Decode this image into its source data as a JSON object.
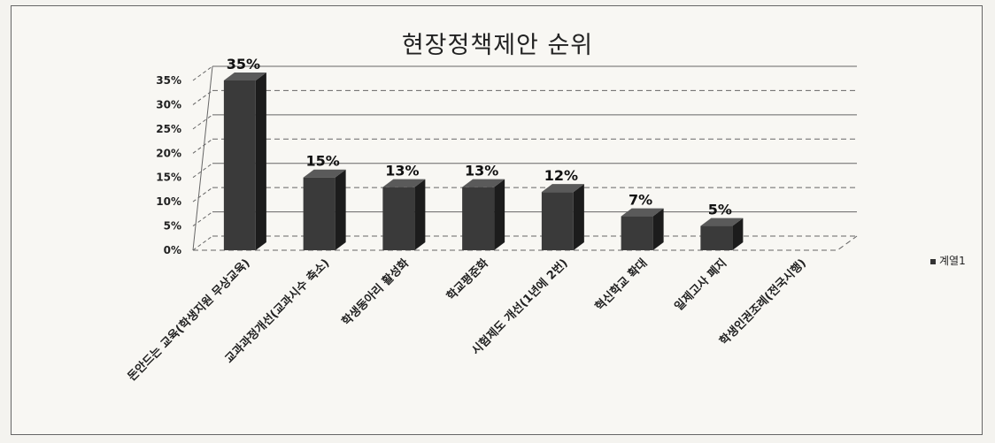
{
  "chart_data": {
    "type": "bar",
    "title": "현장정책제안 순위",
    "categories": [
      "돈안드는 교육(학생지원 무상교육)",
      "교과과정개선(교과시수 축소)",
      "학생동아리 활성화",
      "학교평준화",
      "시험제도 개선(1년에 2번)",
      "혁신학교 확대",
      "일제고사 폐지",
      "학생인권조례(전국시행)"
    ],
    "series": [
      {
        "name": "계열1",
        "values": [
          35,
          15,
          13,
          13,
          12,
          7,
          5,
          0
        ]
      }
    ],
    "data_labels": [
      "35%",
      "15%",
      "13%",
      "13%",
      "12%",
      "7%",
      "5%",
      ""
    ],
    "y_ticks": [
      "0%",
      "5%",
      "10%",
      "15%",
      "20%",
      "25%",
      "30%",
      "35%"
    ],
    "ylim": [
      0,
      35
    ],
    "xlabel": "",
    "ylabel": "",
    "grid": true,
    "legend_position": "right",
    "colors": {
      "bar_front": "#3a3a3a",
      "bar_side": "#1c1c1c",
      "bar_top": "#5a5a5a",
      "grid": "#666666"
    }
  }
}
